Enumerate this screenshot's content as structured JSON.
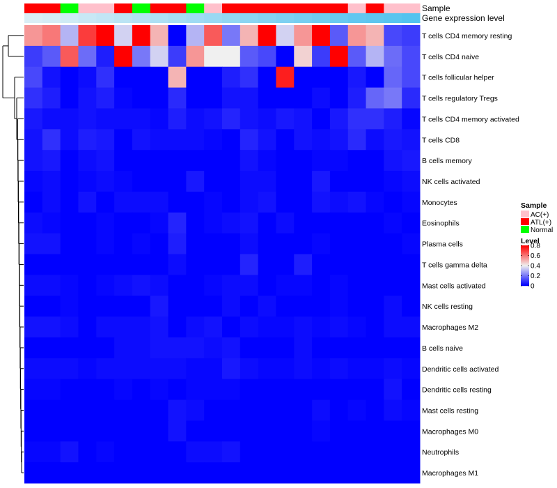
{
  "chart_data": {
    "type": "heatmap",
    "annotation_rows": [
      {
        "label": "Sample",
        "values": [
          "ATL(+)",
          "ATL(+)",
          "Normal",
          "AC(+)",
          "AC(+)",
          "ATL(+)",
          "Normal",
          "ATL(+)",
          "ATL(+)",
          "Normal",
          "AC(+)",
          "ATL(+)",
          "ATL(+)",
          "ATL(+)",
          "ATL(+)",
          "ATL(+)",
          "ATL(+)",
          "ATL(+)",
          "AC(+)",
          "ATL(+)",
          "AC(+)",
          "AC(+)"
        ]
      },
      {
        "label": "Gene expression level",
        "values": [
          0.02,
          0.06,
          0.1,
          0.15,
          0.2,
          0.25,
          0.3,
          0.35,
          0.4,
          0.45,
          0.5,
          0.55,
          0.6,
          0.65,
          0.7,
          0.75,
          0.8,
          0.85,
          0.9,
          0.93,
          0.96,
          1.0
        ]
      }
    ],
    "rows": [
      {
        "name": "T cells CD4 memory resting",
        "values": [
          0.55,
          0.6,
          0.3,
          0.7,
          0.8,
          0.35,
          0.8,
          0.5,
          0.0,
          0.3,
          0.65,
          0.2,
          0.5,
          0.8,
          0.35,
          0.55,
          0.8,
          0.15,
          0.55,
          0.5,
          0.12,
          0.1
        ]
      },
      {
        "name": "T cells CD4 naive",
        "values": [
          0.1,
          0.15,
          0.65,
          0.18,
          0.05,
          0.8,
          0.2,
          0.35,
          0.1,
          0.55,
          0.4,
          0.4,
          0.15,
          0.12,
          0.0,
          0.45,
          0.1,
          0.8,
          0.15,
          0.3,
          0.18,
          0.12
        ]
      },
      {
        "name": "T cells follicular helper",
        "values": [
          0.12,
          0.03,
          0.0,
          0.02,
          0.08,
          0.0,
          0.0,
          0.0,
          0.5,
          0.0,
          0.0,
          0.05,
          0.08,
          0.0,
          0.75,
          0.0,
          0.0,
          0.0,
          0.04,
          0.0,
          0.17,
          0.12
        ]
      },
      {
        "name": "T cells regulatory  Tregs",
        "values": [
          0.08,
          0.05,
          0.0,
          0.03,
          0.05,
          0.01,
          0.0,
          0.0,
          0.07,
          0.0,
          0.0,
          0.03,
          0.03,
          0.0,
          0.0,
          0.0,
          0.02,
          0.0,
          0.05,
          0.17,
          0.2,
          0.07
        ]
      },
      {
        "name": "T cells CD4 memory activated",
        "values": [
          0.04,
          0.02,
          0.02,
          0.03,
          0.02,
          0.02,
          0.02,
          0.01,
          0.05,
          0.02,
          0.03,
          0.06,
          0.03,
          0.02,
          0.04,
          0.03,
          0.0,
          0.04,
          0.08,
          0.08,
          0.05,
          0.01
        ]
      },
      {
        "name": "T cells CD8",
        "values": [
          0.03,
          0.08,
          0.02,
          0.05,
          0.04,
          0.0,
          0.03,
          0.02,
          0.02,
          0.02,
          0.01,
          0.0,
          0.06,
          0.03,
          0.0,
          0.03,
          0.02,
          0.03,
          0.07,
          0.02,
          0.04,
          0.03
        ]
      },
      {
        "name": "B cells memory",
        "values": [
          0.03,
          0.04,
          0.0,
          0.02,
          0.03,
          0.0,
          0.0,
          0.0,
          0.0,
          0.0,
          0.0,
          0.0,
          0.03,
          0.01,
          0.0,
          0.0,
          0.01,
          0.01,
          0.0,
          0.0,
          0.03,
          0.04
        ]
      },
      {
        "name": "NK cells activated",
        "values": [
          0.01,
          0.02,
          0.0,
          0.01,
          0.02,
          0.01,
          0.0,
          0.0,
          0.0,
          0.04,
          0.0,
          0.0,
          0.02,
          0.02,
          0.0,
          0.0,
          0.04,
          0.0,
          0.0,
          0.0,
          0.01,
          0.02
        ]
      },
      {
        "name": "Monocytes",
        "values": [
          0.0,
          0.02,
          0.0,
          0.03,
          0.0,
          0.02,
          0.02,
          0.02,
          0.0,
          0.0,
          0.01,
          0.0,
          0.02,
          0.03,
          0.0,
          0.0,
          0.03,
          0.02,
          0.03,
          0.01,
          0.0,
          0.01
        ]
      },
      {
        "name": "Eosinophils",
        "values": [
          0.02,
          0.01,
          0.0,
          0.0,
          0.01,
          0.0,
          0.0,
          0.01,
          0.06,
          0.0,
          0.01,
          0.02,
          0.03,
          0.0,
          0.02,
          0.0,
          0.0,
          0.0,
          0.0,
          0.0,
          0.01,
          0.0
        ]
      },
      {
        "name": "Plasma cells",
        "values": [
          0.03,
          0.03,
          0.0,
          0.0,
          0.01,
          0.0,
          0.01,
          0.0,
          0.05,
          0.0,
          0.0,
          0.0,
          0.02,
          0.0,
          0.0,
          0.0,
          0.01,
          0.0,
          0.0,
          0.0,
          0.0,
          0.01
        ]
      },
      {
        "name": "T cells gamma delta",
        "values": [
          0.0,
          0.0,
          0.0,
          0.0,
          0.0,
          0.0,
          0.0,
          0.0,
          0.02,
          0.0,
          0.0,
          0.0,
          0.06,
          0.0,
          0.0,
          0.05,
          0.0,
          0.0,
          0.0,
          0.0,
          0.0,
          0.0
        ]
      },
      {
        "name": "Mast cells activated",
        "values": [
          0.02,
          0.02,
          0.01,
          0.0,
          0.01,
          0.02,
          0.03,
          0.02,
          0.0,
          0.0,
          0.01,
          0.02,
          0.02,
          0.0,
          0.01,
          0.01,
          0.0,
          0.01,
          0.0,
          0.0,
          0.0,
          0.0
        ]
      },
      {
        "name": "NK cells resting",
        "values": [
          0.0,
          0.0,
          0.01,
          0.0,
          0.0,
          0.0,
          0.0,
          0.04,
          0.0,
          0.0,
          0.0,
          0.02,
          0.0,
          0.02,
          0.0,
          0.0,
          0.0,
          0.01,
          0.0,
          0.0,
          0.02,
          0.0
        ]
      },
      {
        "name": "Macrophages M2",
        "values": [
          0.03,
          0.03,
          0.02,
          0.0,
          0.02,
          0.02,
          0.02,
          0.03,
          0.0,
          0.02,
          0.03,
          0.0,
          0.02,
          0.01,
          0.01,
          0.02,
          0.01,
          0.02,
          0.01,
          0.0,
          0.02,
          0.02
        ]
      },
      {
        "name": "B cells naive",
        "values": [
          0.0,
          0.0,
          0.0,
          0.0,
          0.0,
          0.02,
          0.02,
          0.03,
          0.03,
          0.03,
          0.02,
          0.03,
          0.0,
          0.0,
          0.0,
          0.02,
          0.0,
          0.0,
          0.0,
          0.0,
          0.0,
          0.0
        ]
      },
      {
        "name": "Dendritic cells activated",
        "values": [
          0.02,
          0.02,
          0.02,
          0.01,
          0.02,
          0.02,
          0.02,
          0.02,
          0.02,
          0.01,
          0.01,
          0.04,
          0.02,
          0.01,
          0.01,
          0.02,
          0.01,
          0.02,
          0.01,
          0.01,
          0.02,
          0.01
        ]
      },
      {
        "name": "Dendritic cells resting",
        "values": [
          0.01,
          0.01,
          0.0,
          0.0,
          0.0,
          0.01,
          0.0,
          0.01,
          0.0,
          0.01,
          0.01,
          0.01,
          0.0,
          0.0,
          0.0,
          0.0,
          0.0,
          0.0,
          0.0,
          0.0,
          0.03,
          0.0
        ]
      },
      {
        "name": "Mast cells resting",
        "values": [
          0.0,
          0.0,
          0.0,
          0.0,
          0.0,
          0.0,
          0.0,
          0.0,
          0.03,
          0.02,
          0.0,
          0.0,
          0.0,
          0.0,
          0.0,
          0.0,
          0.02,
          0.0,
          0.01,
          0.0,
          0.02,
          0.01
        ]
      },
      {
        "name": "Macrophages M0",
        "values": [
          0.0,
          0.0,
          0.0,
          0.0,
          0.0,
          0.0,
          0.0,
          0.0,
          0.03,
          0.0,
          0.0,
          0.0,
          0.0,
          0.0,
          0.0,
          0.0,
          0.01,
          0.0,
          0.0,
          0.0,
          0.0,
          0.0
        ]
      },
      {
        "name": "Neutrophils",
        "values": [
          0.01,
          0.01,
          0.03,
          0.0,
          0.01,
          0.0,
          0.0,
          0.0,
          0.0,
          0.02,
          0.02,
          0.03,
          0.0,
          0.0,
          0.0,
          0.0,
          0.0,
          0.0,
          0.0,
          0.0,
          0.0,
          0.0
        ]
      },
      {
        "name": "Macrophages M1",
        "values": [
          0.0,
          0.0,
          0.0,
          0.0,
          0.0,
          0.0,
          0.0,
          0.0,
          0.0,
          0.0,
          0.0,
          0.0,
          0.0,
          0.0,
          0.0,
          0.0,
          0.0,
          0.0,
          0.0,
          0.0,
          0.0,
          0.0
        ]
      }
    ],
    "legend": {
      "sample": {
        "title": "Sample",
        "entries": [
          {
            "label": "AC(+)",
            "color": "#FFC0CB"
          },
          {
            "label": "ATL(+)",
            "color": "#FF0000"
          },
          {
            "label": "Normal",
            "color": "#00FF00"
          }
        ]
      },
      "level": {
        "title": "Level",
        "ticks": [
          "0.8",
          "0.6",
          "0.4",
          "0.2",
          "0"
        ],
        "range": [
          0,
          0.8
        ]
      }
    },
    "colors": {
      "low": "#0000FF",
      "mid": "#F0F0F0",
      "high": "#FF0000",
      "annotation_low": "#DDEFF6",
      "annotation_high": "#54C3EF"
    }
  }
}
